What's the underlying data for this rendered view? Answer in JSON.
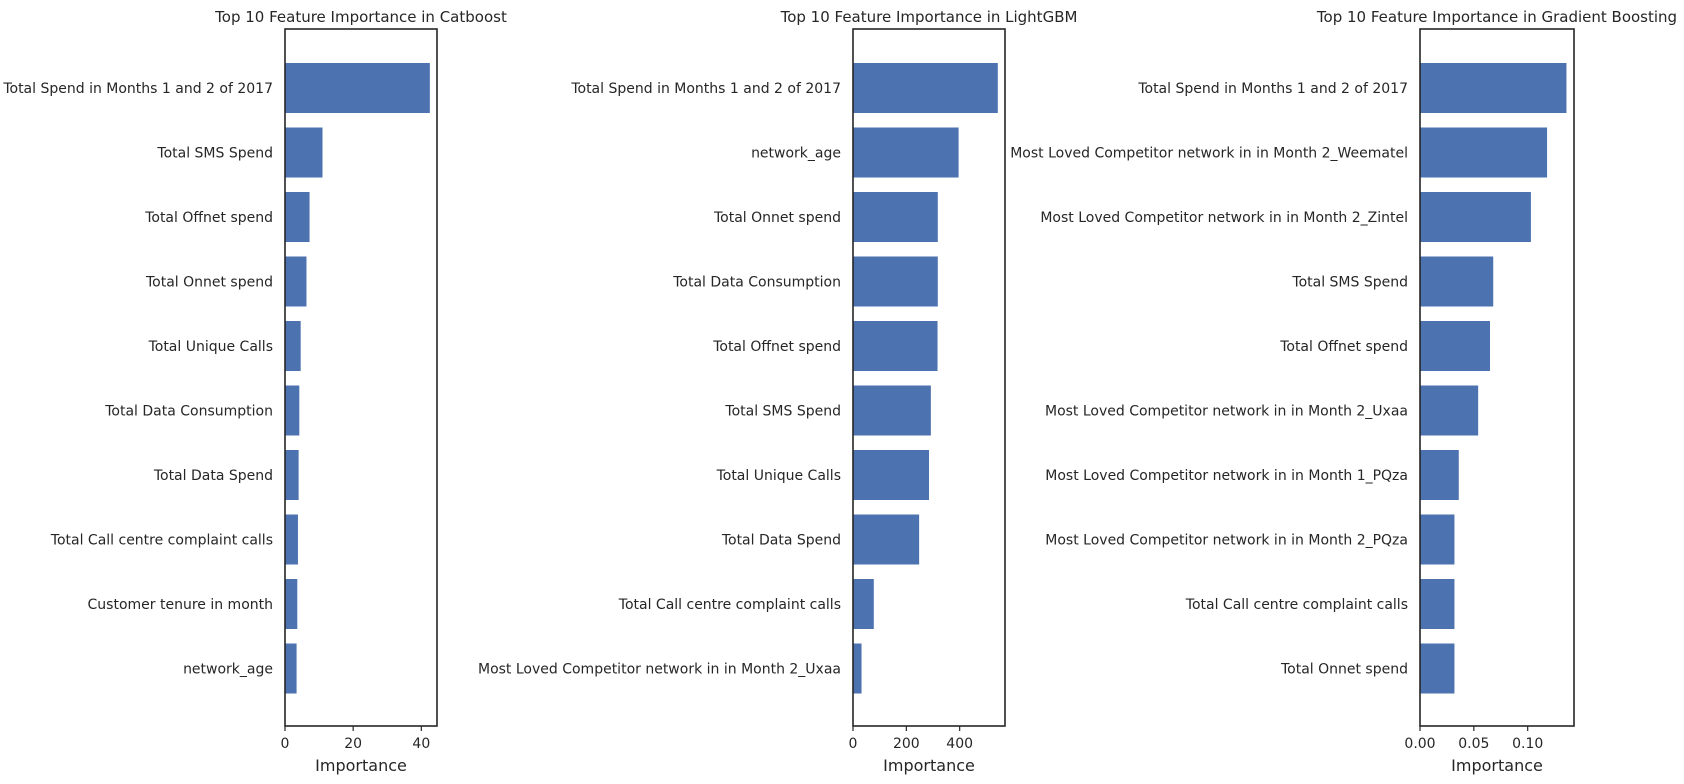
{
  "colors": {
    "bar": "#4c72b0",
    "axis": "#262626",
    "text": "#262626",
    "background": "#ffffff"
  },
  "chart_data": [
    {
      "type": "bar",
      "orientation": "horizontal",
      "title": "Top 10 Feature Importance in Catboost",
      "xlabel": "Importance",
      "xlim": [
        0,
        44.6
      ],
      "xticks": [
        0,
        20,
        40
      ],
      "xtick_labels": [
        "0",
        "20",
        "40"
      ],
      "grid": false,
      "categories": [
        "Total Spend in Months 1 and 2 of 2017",
        "Total SMS Spend",
        "Total Offnet spend",
        "Total Onnet spend ",
        "Total Unique Calls",
        "Total Data Consumption",
        "Total Data Spend",
        "Total Call centre complaint calls",
        "Customer tenure in month",
        "network_age"
      ],
      "values": [
        42.5,
        11.0,
        7.2,
        6.3,
        4.6,
        4.2,
        4.0,
        3.8,
        3.6,
        3.4
      ]
    },
    {
      "type": "bar",
      "orientation": "horizontal",
      "title": "Top 10 Feature Importance in LightGBM",
      "xlabel": "Importance",
      "xlim": [
        0,
        570
      ],
      "xticks": [
        0,
        200,
        400
      ],
      "xtick_labels": [
        "0",
        "200",
        "400"
      ],
      "grid": false,
      "categories": [
        "Total Spend in Months 1 and 2 of 2017",
        "network_age",
        "Total Onnet spend ",
        "Total Data Consumption",
        "Total Offnet spend",
        "Total SMS Spend",
        "Total Unique Calls",
        "Total Data Spend",
        "Total Call centre complaint calls",
        "Most Loved Competitor network in in Month 2_Uxaa"
      ],
      "values": [
        543,
        396,
        318,
        318,
        317,
        292,
        285,
        248,
        78,
        32
      ]
    },
    {
      "type": "bar",
      "orientation": "horizontal",
      "title": "Top 10 Feature Importance in Gradient Boosting",
      "xlabel": "Importance",
      "xlim": [
        0,
        0.143
      ],
      "xticks": [
        0.0,
        0.05,
        0.1
      ],
      "xtick_labels": [
        "0.00",
        "0.05",
        "0.10"
      ],
      "grid": false,
      "categories": [
        "Total Spend in Months 1 and 2 of 2017",
        "Most Loved Competitor network in in Month 2_Weematel",
        "Most Loved Competitor network in in Month 2_Zintel",
        "Total SMS Spend",
        "Total Offnet spend",
        "Most Loved Competitor network in in Month 2_Uxaa",
        "Most Loved Competitor network in in Month 1_PQza",
        "Most Loved Competitor network in in Month 2_PQza",
        "Total Call centre complaint calls",
        "Total Onnet spend "
      ],
      "values": [
        0.136,
        0.118,
        0.103,
        0.068,
        0.065,
        0.054,
        0.036,
        0.032,
        0.032,
        0.032
      ]
    }
  ]
}
